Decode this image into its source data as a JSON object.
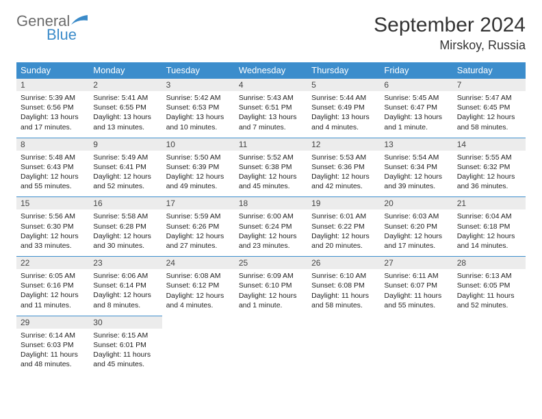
{
  "logo": {
    "word1": "General",
    "word2": "Blue"
  },
  "title": "September 2024",
  "location": "Mirskoy, Russia",
  "colors": {
    "header_bg": "#3c8dcc",
    "header_text": "#ffffff",
    "daynum_bg": "#ececec",
    "rule": "#3c8dcc",
    "text": "#222222",
    "logo_gray": "#6b6b6b",
    "logo_blue": "#3b8bc9"
  },
  "fonts": {
    "title_size": 30,
    "location_size": 18,
    "weekday_size": 13,
    "daynum_size": 12,
    "detail_size": 10.5,
    "family": "Arial"
  },
  "weekdays": [
    "Sunday",
    "Monday",
    "Tuesday",
    "Wednesday",
    "Thursday",
    "Friday",
    "Saturday"
  ],
  "weeks": [
    [
      {
        "n": "1",
        "sr": "Sunrise: 5:39 AM",
        "ss": "Sunset: 6:56 PM",
        "d1": "Daylight: 13 hours",
        "d2": "and 17 minutes."
      },
      {
        "n": "2",
        "sr": "Sunrise: 5:41 AM",
        "ss": "Sunset: 6:55 PM",
        "d1": "Daylight: 13 hours",
        "d2": "and 13 minutes."
      },
      {
        "n": "3",
        "sr": "Sunrise: 5:42 AM",
        "ss": "Sunset: 6:53 PM",
        "d1": "Daylight: 13 hours",
        "d2": "and 10 minutes."
      },
      {
        "n": "4",
        "sr": "Sunrise: 5:43 AM",
        "ss": "Sunset: 6:51 PM",
        "d1": "Daylight: 13 hours",
        "d2": "and 7 minutes."
      },
      {
        "n": "5",
        "sr": "Sunrise: 5:44 AM",
        "ss": "Sunset: 6:49 PM",
        "d1": "Daylight: 13 hours",
        "d2": "and 4 minutes."
      },
      {
        "n": "6",
        "sr": "Sunrise: 5:45 AM",
        "ss": "Sunset: 6:47 PM",
        "d1": "Daylight: 13 hours",
        "d2": "and 1 minute."
      },
      {
        "n": "7",
        "sr": "Sunrise: 5:47 AM",
        "ss": "Sunset: 6:45 PM",
        "d1": "Daylight: 12 hours",
        "d2": "and 58 minutes."
      }
    ],
    [
      {
        "n": "8",
        "sr": "Sunrise: 5:48 AM",
        "ss": "Sunset: 6:43 PM",
        "d1": "Daylight: 12 hours",
        "d2": "and 55 minutes."
      },
      {
        "n": "9",
        "sr": "Sunrise: 5:49 AM",
        "ss": "Sunset: 6:41 PM",
        "d1": "Daylight: 12 hours",
        "d2": "and 52 minutes."
      },
      {
        "n": "10",
        "sr": "Sunrise: 5:50 AM",
        "ss": "Sunset: 6:39 PM",
        "d1": "Daylight: 12 hours",
        "d2": "and 49 minutes."
      },
      {
        "n": "11",
        "sr": "Sunrise: 5:52 AM",
        "ss": "Sunset: 6:38 PM",
        "d1": "Daylight: 12 hours",
        "d2": "and 45 minutes."
      },
      {
        "n": "12",
        "sr": "Sunrise: 5:53 AM",
        "ss": "Sunset: 6:36 PM",
        "d1": "Daylight: 12 hours",
        "d2": "and 42 minutes."
      },
      {
        "n": "13",
        "sr": "Sunrise: 5:54 AM",
        "ss": "Sunset: 6:34 PM",
        "d1": "Daylight: 12 hours",
        "d2": "and 39 minutes."
      },
      {
        "n": "14",
        "sr": "Sunrise: 5:55 AM",
        "ss": "Sunset: 6:32 PM",
        "d1": "Daylight: 12 hours",
        "d2": "and 36 minutes."
      }
    ],
    [
      {
        "n": "15",
        "sr": "Sunrise: 5:56 AM",
        "ss": "Sunset: 6:30 PM",
        "d1": "Daylight: 12 hours",
        "d2": "and 33 minutes."
      },
      {
        "n": "16",
        "sr": "Sunrise: 5:58 AM",
        "ss": "Sunset: 6:28 PM",
        "d1": "Daylight: 12 hours",
        "d2": "and 30 minutes."
      },
      {
        "n": "17",
        "sr": "Sunrise: 5:59 AM",
        "ss": "Sunset: 6:26 PM",
        "d1": "Daylight: 12 hours",
        "d2": "and 27 minutes."
      },
      {
        "n": "18",
        "sr": "Sunrise: 6:00 AM",
        "ss": "Sunset: 6:24 PM",
        "d1": "Daylight: 12 hours",
        "d2": "and 23 minutes."
      },
      {
        "n": "19",
        "sr": "Sunrise: 6:01 AM",
        "ss": "Sunset: 6:22 PM",
        "d1": "Daylight: 12 hours",
        "d2": "and 20 minutes."
      },
      {
        "n": "20",
        "sr": "Sunrise: 6:03 AM",
        "ss": "Sunset: 6:20 PM",
        "d1": "Daylight: 12 hours",
        "d2": "and 17 minutes."
      },
      {
        "n": "21",
        "sr": "Sunrise: 6:04 AM",
        "ss": "Sunset: 6:18 PM",
        "d1": "Daylight: 12 hours",
        "d2": "and 14 minutes."
      }
    ],
    [
      {
        "n": "22",
        "sr": "Sunrise: 6:05 AM",
        "ss": "Sunset: 6:16 PM",
        "d1": "Daylight: 12 hours",
        "d2": "and 11 minutes."
      },
      {
        "n": "23",
        "sr": "Sunrise: 6:06 AM",
        "ss": "Sunset: 6:14 PM",
        "d1": "Daylight: 12 hours",
        "d2": "and 8 minutes."
      },
      {
        "n": "24",
        "sr": "Sunrise: 6:08 AM",
        "ss": "Sunset: 6:12 PM",
        "d1": "Daylight: 12 hours",
        "d2": "and 4 minutes."
      },
      {
        "n": "25",
        "sr": "Sunrise: 6:09 AM",
        "ss": "Sunset: 6:10 PM",
        "d1": "Daylight: 12 hours",
        "d2": "and 1 minute."
      },
      {
        "n": "26",
        "sr": "Sunrise: 6:10 AM",
        "ss": "Sunset: 6:08 PM",
        "d1": "Daylight: 11 hours",
        "d2": "and 58 minutes."
      },
      {
        "n": "27",
        "sr": "Sunrise: 6:11 AM",
        "ss": "Sunset: 6:07 PM",
        "d1": "Daylight: 11 hours",
        "d2": "and 55 minutes."
      },
      {
        "n": "28",
        "sr": "Sunrise: 6:13 AM",
        "ss": "Sunset: 6:05 PM",
        "d1": "Daylight: 11 hours",
        "d2": "and 52 minutes."
      }
    ],
    [
      {
        "n": "29",
        "sr": "Sunrise: 6:14 AM",
        "ss": "Sunset: 6:03 PM",
        "d1": "Daylight: 11 hours",
        "d2": "and 48 minutes."
      },
      {
        "n": "30",
        "sr": "Sunrise: 6:15 AM",
        "ss": "Sunset: 6:01 PM",
        "d1": "Daylight: 11 hours",
        "d2": "and 45 minutes."
      },
      null,
      null,
      null,
      null,
      null
    ]
  ]
}
